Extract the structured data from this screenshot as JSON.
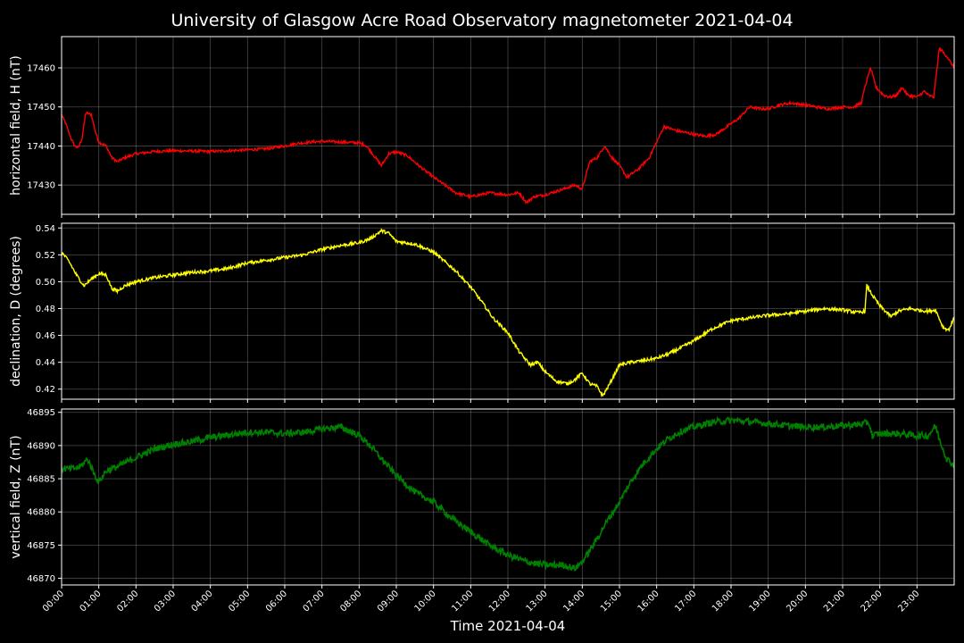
{
  "chart_data": {
    "type": "line",
    "title": "University of Glasgow Acre Road Observatory magnetometer 2021-04-04",
    "xlabel": "Time 2021-04-04",
    "grid": true,
    "x_ticks": [
      "00:00",
      "01:00",
      "02:00",
      "03:00",
      "04:00",
      "05:00",
      "06:00",
      "07:00",
      "08:00",
      "09:00",
      "10:00",
      "11:00",
      "12:00",
      "13:00",
      "14:00",
      "15:00",
      "16:00",
      "17:00",
      "18:00",
      "19:00",
      "20:00",
      "21:00",
      "22:00",
      "23:00"
    ],
    "xlim_hours": [
      0,
      24
    ],
    "panels": [
      {
        "ylabel": "horizontal field, H (nT)",
        "color": "#ff0000",
        "ylim": [
          17422.5,
          17468
        ],
        "yticks": [
          17430,
          17440,
          17450,
          17460
        ],
        "noise": 0.35,
        "x": [
          0,
          0.1,
          0.25,
          0.35,
          0.45,
          0.55,
          0.65,
          0.8,
          0.9,
          1.0,
          1.2,
          1.35,
          1.5,
          1.7,
          2.0,
          2.5,
          3.0,
          3.5,
          4.0,
          4.5,
          5.0,
          5.5,
          6.0,
          6.3,
          6.7,
          7.0,
          7.5,
          8.0,
          8.2,
          8.4,
          8.6,
          8.8,
          9.0,
          9.3,
          9.6,
          10.0,
          10.3,
          10.6,
          11.0,
          11.5,
          12.0,
          12.3,
          12.5,
          12.7,
          13.0,
          13.5,
          13.8,
          14.0,
          14.2,
          14.4,
          14.6,
          14.8,
          15.0,
          15.2,
          15.5,
          15.8,
          16.0,
          16.2,
          16.5,
          17.0,
          17.3,
          17.6,
          17.9,
          18.2,
          18.5,
          18.8,
          19.0,
          19.3,
          19.6,
          20.0,
          20.3,
          20.6,
          21.0,
          21.3,
          21.5,
          21.6,
          21.75,
          21.9,
          22.1,
          22.3,
          22.45,
          22.6,
          22.75,
          23.0,
          23.2,
          23.3,
          23.45,
          23.6,
          23.8,
          24.0
        ],
        "y": [
          17448,
          17446,
          17442,
          17440,
          17439.5,
          17442,
          17448.5,
          17448,
          17444,
          17441,
          17440,
          17437,
          17436,
          17437,
          17438,
          17438.6,
          17438.8,
          17438.7,
          17438.6,
          17438.8,
          17439,
          17439.3,
          17440,
          17440.6,
          17441,
          17441.2,
          17441,
          17440.8,
          17440,
          17437.5,
          17435,
          17438,
          17438.5,
          17437.5,
          17435,
          17432,
          17430,
          17428,
          17427,
          17428,
          17427.5,
          17428,
          17425.5,
          17427,
          17427.5,
          17429,
          17430,
          17429,
          17436,
          17437,
          17440,
          17437,
          17435,
          17432,
          17434,
          17437,
          17441,
          17445,
          17444,
          17443,
          17442.5,
          17443,
          17445,
          17447,
          17450,
          17449.5,
          17449.5,
          17450.5,
          17451,
          17450.5,
          17450,
          17449.5,
          17450,
          17450,
          17451,
          17455,
          17460,
          17455,
          17453,
          17452.5,
          17453,
          17455,
          17453,
          17452.5,
          17454,
          17453,
          17452.5,
          17465,
          17463,
          17460
        ]
      },
      {
        "ylabel": "declination, D (degrees)",
        "color": "#ffff00",
        "ylim": [
          0.4125,
          0.5435
        ],
        "yticks": [
          0.42,
          0.44,
          0.46,
          0.48,
          0.5,
          0.52,
          0.54
        ],
        "noise": 0.0012,
        "x": [
          0,
          0.2,
          0.4,
          0.6,
          0.8,
          1.0,
          1.2,
          1.35,
          1.5,
          1.7,
          2.0,
          2.5,
          3.0,
          3.5,
          4.0,
          4.5,
          5.0,
          5.5,
          6.0,
          6.5,
          7.0,
          7.5,
          8.0,
          8.3,
          8.6,
          8.8,
          9.0,
          9.5,
          10.0,
          10.3,
          10.6,
          11.0,
          11.3,
          11.6,
          12.0,
          12.3,
          12.6,
          12.8,
          13.0,
          13.3,
          13.6,
          13.8,
          14.0,
          14.2,
          14.4,
          14.55,
          14.7,
          15.0,
          15.3,
          15.6,
          16.0,
          16.3,
          16.6,
          17.0,
          17.5,
          18.0,
          18.5,
          19.0,
          19.5,
          20.0,
          20.5,
          21.0,
          21.4,
          21.6,
          21.65,
          21.8,
          22.0,
          22.3,
          22.5,
          22.8,
          23.0,
          23.3,
          23.5,
          23.7,
          23.85,
          24.0
        ],
        "y": [
          0.522,
          0.515,
          0.505,
          0.497,
          0.502,
          0.506,
          0.505,
          0.495,
          0.493,
          0.497,
          0.5,
          0.503,
          0.505,
          0.507,
          0.508,
          0.51,
          0.514,
          0.516,
          0.518,
          0.52,
          0.524,
          0.527,
          0.529,
          0.532,
          0.538,
          0.536,
          0.53,
          0.528,
          0.522,
          0.515,
          0.508,
          0.496,
          0.485,
          0.473,
          0.462,
          0.448,
          0.438,
          0.44,
          0.433,
          0.426,
          0.424,
          0.427,
          0.432,
          0.424,
          0.422,
          0.415,
          0.422,
          0.438,
          0.44,
          0.441,
          0.443,
          0.446,
          0.45,
          0.456,
          0.465,
          0.471,
          0.473,
          0.475,
          0.476,
          0.478,
          0.48,
          0.479,
          0.477,
          0.478,
          0.497,
          0.49,
          0.482,
          0.474,
          0.478,
          0.48,
          0.479,
          0.478,
          0.479,
          0.466,
          0.464,
          0.473
        ]
      },
      {
        "ylabel": "vertical field, Z (nT)",
        "color": "#008000",
        "ylim": [
          46869,
          46895.5
        ],
        "yticks": [
          46870,
          46875,
          46880,
          46885,
          46890,
          46895
        ],
        "noise": 0.5,
        "x": [
          0,
          0.3,
          0.5,
          0.7,
          0.9,
          1.0,
          1.2,
          1.5,
          2.0,
          2.5,
          3.0,
          3.5,
          4.0,
          4.5,
          5.0,
          5.5,
          6.0,
          6.5,
          7.0,
          7.5,
          8.0,
          8.3,
          8.6,
          9.0,
          9.5,
          10.0,
          10.5,
          11.0,
          11.5,
          12.0,
          12.5,
          13.0,
          13.5,
          13.8,
          14.0,
          14.3,
          14.6,
          15.0,
          15.3,
          15.6,
          16.0,
          16.3,
          16.6,
          17.0,
          17.5,
          18.0,
          18.5,
          19.0,
          19.5,
          20.0,
          20.5,
          21.0,
          21.5,
          21.7,
          21.8,
          22.0,
          22.5,
          23.0,
          23.3,
          23.5,
          23.6,
          23.8,
          24.0
        ],
        "y": [
          46886.5,
          46886.5,
          46886.8,
          46888,
          46885.5,
          46884.5,
          46886.2,
          46886.8,
          46888.2,
          46889.5,
          46890.2,
          46890.6,
          46891.2,
          46891.6,
          46892,
          46892,
          46891.8,
          46892,
          46892.5,
          46892.8,
          46891.5,
          46890,
          46888,
          46885.5,
          46883,
          46881.5,
          46879,
          46877,
          46875,
          46873.5,
          46872.5,
          46872,
          46872,
          46871.5,
          46872.5,
          46875,
          46878,
          46881.5,
          46884.5,
          46887,
          46889.5,
          46891,
          46892,
          46892.8,
          46893.5,
          46893.8,
          46893.6,
          46893.3,
          46893,
          46892.8,
          46892.8,
          46893,
          46893.2,
          46893.5,
          46891.5,
          46891.8,
          46891.8,
          46891.5,
          46891.5,
          46893,
          46891,
          46888,
          46887
        ]
      }
    ]
  }
}
